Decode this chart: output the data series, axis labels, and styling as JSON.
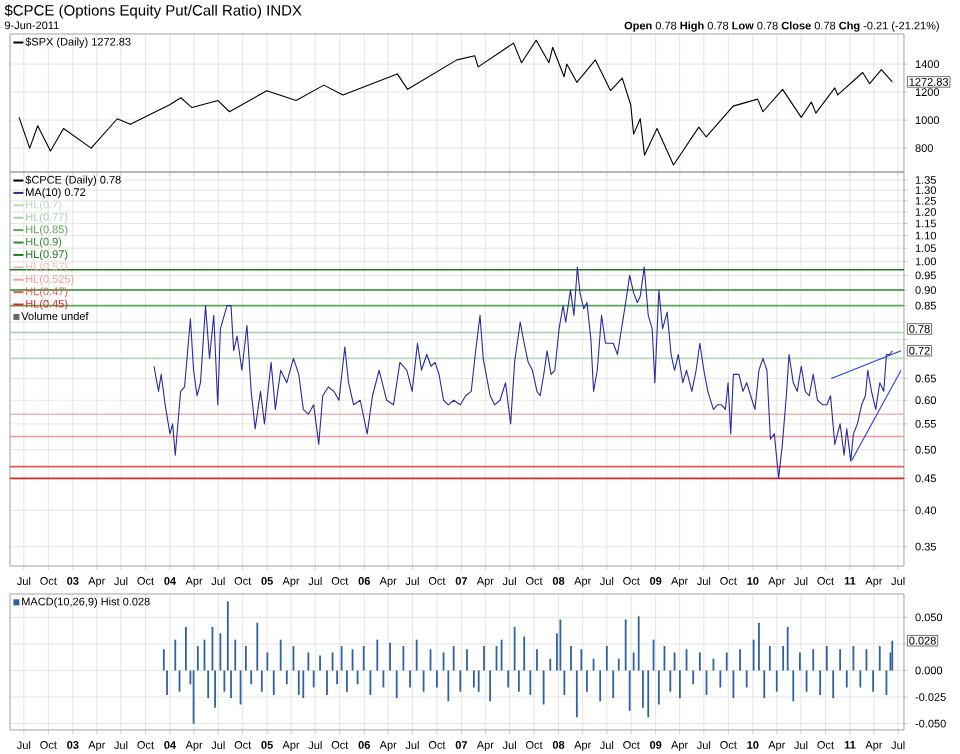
{
  "chart_data": [
    {
      "type": "line",
      "title": "$CPCE (Options Equity Put/Call Ratio) INDX",
      "subtitle": "9-Jun-2011",
      "annotations": [
        "**Open** 0.78 **High** 0.78 **Low** 0.78 **Close** 0.78 **Chg** -0.21 (-21.21%)",
        {
          "text": "1272.83",
          "x": "2011-06-09",
          "y": 1272.83
        }
      ],
      "xlim": [
        "2002-05-10",
        "2011-07-23"
      ],
      "ylim": [
        630,
        1615
      ],
      "xticks": [
        {
          "value": "2002-07-01",
          "label": null
        },
        {
          "value": "2002-10-01",
          "label": null
        },
        {
          "value": "2003-01-01",
          "label": null
        },
        {
          "value": "2003-04-01",
          "label": null
        },
        {
          "value": "2003-07-01",
          "label": null
        },
        {
          "value": "2003-10-01",
          "label": null
        },
        {
          "value": "2004-01-01",
          "label": null
        },
        {
          "value": "2004-04-01",
          "label": null
        },
        {
          "value": "2004-07-01",
          "label": null
        },
        {
          "value": "2004-10-01",
          "label": null
        },
        {
          "value": "2005-01-01",
          "label": null
        },
        {
          "value": "2005-04-01",
          "label": null
        },
        {
          "value": "2005-07-01",
          "label": null
        },
        {
          "value": "2005-10-01",
          "label": null
        },
        {
          "value": "2006-01-01",
          "label": null
        },
        {
          "value": "2006-04-01",
          "label": null
        },
        {
          "value": "2006-07-01",
          "label": null
        },
        {
          "value": "2006-10-01",
          "label": null
        },
        {
          "value": "2007-01-01",
          "label": null
        },
        {
          "value": "2007-04-01",
          "label": null
        },
        {
          "value": "2007-07-01",
          "label": null
        },
        {
          "value": "2007-10-01",
          "label": null
        },
        {
          "value": "2008-01-01",
          "label": null
        },
        {
          "value": "2008-04-01",
          "label": null
        },
        {
          "value": "2008-07-01",
          "label": null
        },
        {
          "value": "2008-10-01",
          "label": null
        },
        {
          "value": "2009-01-01",
          "label": null
        },
        {
          "value": "2009-04-01",
          "label": null
        },
        {
          "value": "2009-07-01",
          "label": null
        },
        {
          "value": "2009-10-01",
          "label": null
        },
        {
          "value": "2010-01-01",
          "label": null
        },
        {
          "value": "2010-04-01",
          "label": null
        },
        {
          "value": "2010-07-01",
          "label": null
        },
        {
          "value": "2010-10-01",
          "label": null
        },
        {
          "value": "2011-01-01",
          "label": null
        },
        {
          "value": "2011-04-01",
          "label": null
        },
        {
          "value": "2011-07-01",
          "label": null
        }
      ],
      "yticks": [
        800,
        1000,
        1200,
        1400
      ],
      "tick_labels": "y",
      "grid": true,
      "legend": "top left",
      "series": [
        {
          "name": "$SPX (Daily) 1272.83",
          "color": "#000000",
          "x": [
            "2002-06-13",
            "2002-07-23",
            "2002-08-22",
            "2002-10-09",
            "2002-11-27",
            "2003-03-11",
            "2003-06-17",
            "2003-08-05",
            "2003-12-31",
            "2004-02-11",
            "2004-03-24",
            "2004-06-30",
            "2004-08-12",
            "2004-12-31",
            "2005-04-20",
            "2005-08-02",
            "2005-10-13",
            "2006-05-05",
            "2006-06-13",
            "2006-12-15",
            "2007-02-20",
            "2007-03-05",
            "2007-07-16",
            "2007-08-15",
            "2007-10-09",
            "2007-11-26",
            "2007-12-10",
            "2008-01-22",
            "2008-02-01",
            "2008-03-10",
            "2008-05-19",
            "2008-07-15",
            "2008-08-28",
            "2008-09-29",
            "2008-10-10",
            "2008-11-04",
            "2008-11-20",
            "2009-01-06",
            "2009-03-09",
            "2009-06-12",
            "2009-07-10",
            "2009-10-19",
            "2010-01-19",
            "2010-02-08",
            "2010-04-23",
            "2010-07-02",
            "2010-08-09",
            "2010-08-26",
            "2010-11-05",
            "2010-11-16",
            "2011-02-18",
            "2011-03-16",
            "2011-04-29",
            "2011-06-09"
          ],
          "values": [
            1020,
            800,
            960,
            780,
            940,
            800,
            1010,
            970,
            1110,
            1160,
            1090,
            1140,
            1060,
            1210,
            1140,
            1250,
            1180,
            1330,
            1220,
            1430,
            1460,
            1380,
            1550,
            1410,
            1570,
            1410,
            1520,
            1310,
            1400,
            1270,
            1430,
            1210,
            1300,
            1110,
            900,
            1010,
            750,
            940,
            680,
            950,
            880,
            1100,
            1150,
            1060,
            1220,
            1020,
            1130,
            1050,
            1230,
            1180,
            1340,
            1260,
            1360,
            1272.83
          ]
        }
      ]
    },
    {
      "type": "line",
      "log": "y",
      "grid": true,
      "legend": "top left",
      "annotations": [
        "$CPCE (Daily) 0.78",
        "Volume undef",
        {
          "text": "0.78",
          "x": "2011-06-09",
          "y": 0.78
        },
        {
          "text": "0.72",
          "x": "2011-06-09",
          "y": 0.72
        }
      ],
      "xlim": [
        "2002-05-10",
        "2011-07-23"
      ],
      "ylim": [
        0.326,
        1.39
      ],
      "xticks": [
        {
          "value": "2002-07-01",
          "label": "Jul"
        },
        {
          "value": "2002-10-01",
          "label": "Oct"
        },
        {
          "value": "2003-01-01",
          "label": "03"
        },
        {
          "value": "2003-04-01",
          "label": "Apr"
        },
        {
          "value": "2003-07-01",
          "label": "Jul"
        },
        {
          "value": "2003-10-01",
          "label": "Oct"
        },
        {
          "value": "2004-01-01",
          "label": "04"
        },
        {
          "value": "2004-04-01",
          "label": "Apr"
        },
        {
          "value": "2004-07-01",
          "label": "Jul"
        },
        {
          "value": "2004-10-01",
          "label": "Oct"
        },
        {
          "value": "2005-01-01",
          "label": "05"
        },
        {
          "value": "2005-04-01",
          "label": "Apr"
        },
        {
          "value": "2005-07-01",
          "label": "Jul"
        },
        {
          "value": "2005-10-01",
          "label": "Oct"
        },
        {
          "value": "2006-01-01",
          "label": "06"
        },
        {
          "value": "2006-04-01",
          "label": "Apr"
        },
        {
          "value": "2006-07-01",
          "label": "Jul"
        },
        {
          "value": "2006-10-01",
          "label": "Oct"
        },
        {
          "value": "2007-01-01",
          "label": "07"
        },
        {
          "value": "2007-04-01",
          "label": "Apr"
        },
        {
          "value": "2007-07-01",
          "label": "Jul"
        },
        {
          "value": "2007-10-01",
          "label": "Oct"
        },
        {
          "value": "2008-01-01",
          "label": "08"
        },
        {
          "value": "2008-04-01",
          "label": "Apr"
        },
        {
          "value": "2008-07-01",
          "label": "Jul"
        },
        {
          "value": "2008-10-01",
          "label": "Oct"
        },
        {
          "value": "2009-01-01",
          "label": "09"
        },
        {
          "value": "2009-04-01",
          "label": "Apr"
        },
        {
          "value": "2009-07-01",
          "label": "Jul"
        },
        {
          "value": "2009-10-01",
          "label": "Oct"
        },
        {
          "value": "2010-01-01",
          "label": "10"
        },
        {
          "value": "2010-04-01",
          "label": "Apr"
        },
        {
          "value": "2010-07-01",
          "label": "Jul"
        },
        {
          "value": "2010-10-01",
          "label": "Oct"
        },
        {
          "value": "2011-01-01",
          "label": "11"
        },
        {
          "value": "2011-04-01",
          "label": "Apr"
        },
        {
          "value": "2011-07-01",
          "label": "Jul"
        }
      ],
      "yticks": [
        {
          "value": 0.35,
          "label": "0.35"
        },
        {
          "value": 0.4,
          "label": "0.40"
        },
        {
          "value": 0.45,
          "label": "0.45"
        },
        {
          "value": 0.5,
          "label": "0.50"
        },
        {
          "value": 0.55,
          "label": "0.55"
        },
        {
          "value": 0.6,
          "label": "0.60"
        },
        {
          "value": 0.65,
          "label": "0.65"
        },
        {
          "value": 0.7,
          "label": null
        },
        {
          "value": 0.75,
          "label": null
        },
        {
          "value": 0.8,
          "label": null
        },
        {
          "value": 0.85,
          "label": "0.85"
        },
        {
          "value": 0.9,
          "label": "0.90"
        },
        {
          "value": 0.95,
          "label": "0.95"
        },
        {
          "value": 1.0,
          "label": "1.00"
        },
        {
          "value": 1.05,
          "label": "1.05"
        },
        {
          "value": 1.1,
          "label": "1.10"
        },
        {
          "value": 1.15,
          "label": "1.15"
        },
        {
          "value": 1.2,
          "label": "1.20"
        },
        {
          "value": 1.25,
          "label": "1.25"
        },
        {
          "value": 1.3,
          "label": "1.30"
        },
        {
          "value": 1.35,
          "label": "1.35"
        }
      ],
      "ref_lines": [
        {
          "axis": "y",
          "value": 0.7,
          "label": "HL(0.7)",
          "color": "#b9dab9"
        },
        {
          "axis": "y",
          "value": 0.77,
          "label": "HL(0.77)",
          "color": "#a8d0a8"
        },
        {
          "axis": "y",
          "value": 0.85,
          "label": "HL(0.85)",
          "color": "#5aa65a"
        },
        {
          "axis": "y",
          "value": 0.9,
          "label": "HL(0.9)",
          "color": "#2e8b2e"
        },
        {
          "axis": "y",
          "value": 0.97,
          "label": "HL(0.97)",
          "color": "#1f7a1f"
        },
        {
          "axis": "y",
          "value": 0.57,
          "label": "HL(0.57)",
          "color": "#f4b4b4"
        },
        {
          "axis": "y",
          "value": 0.525,
          "label": "HL(0.525)",
          "color": "#f09a9a"
        },
        {
          "axis": "y",
          "value": 0.47,
          "label": "HL(0.47)",
          "color": "#e45a5a"
        },
        {
          "axis": "y",
          "value": 0.45,
          "label": "HL(0.45)",
          "color": "#e02828"
        }
      ],
      "series": [
        {
          "name": "MA(10) 0.72",
          "color": "#2b2b9c",
          "x": [
            "2003-11-02",
            "2003-11-19",
            "2003-11-29",
            "2003-12-14",
            "2004-01-01",
            "2004-01-11",
            "2004-01-21",
            "2004-02-10",
            "2004-02-25",
            "2004-03-18",
            "2004-03-30",
            "2004-04-12",
            "2004-04-25",
            "2004-05-14",
            "2004-05-29",
            "2004-06-14",
            "2004-06-29",
            "2004-07-09",
            "2004-08-03",
            "2004-08-18",
            "2004-08-28",
            "2004-09-10",
            "2004-09-28",
            "2004-10-17",
            "2004-11-02",
            "2004-11-17",
            "2004-12-07",
            "2004-12-22",
            "2005-01-16",
            "2005-02-01",
            "2005-02-21",
            "2005-03-16",
            "2005-04-10",
            "2005-04-30",
            "2005-05-17",
            "2005-06-05",
            "2005-06-25",
            "2005-07-14",
            "2005-07-29",
            "2005-08-19",
            "2005-09-09",
            "2005-09-28",
            "2005-10-20",
            "2005-11-03",
            "2005-11-22",
            "2005-12-17",
            "2006-01-12",
            "2006-02-01",
            "2006-02-26",
            "2006-03-26",
            "2006-04-21",
            "2006-05-15",
            "2006-06-10",
            "2006-06-30",
            "2006-07-20",
            "2006-08-04",
            "2006-08-24",
            "2006-09-09",
            "2006-09-24",
            "2006-10-09",
            "2006-10-26",
            "2006-11-13",
            "2006-12-03",
            "2006-12-28",
            "2007-01-17",
            "2007-02-07",
            "2007-02-22",
            "2007-03-12",
            "2007-03-24",
            "2007-04-19",
            "2007-05-06",
            "2007-05-26",
            "2007-06-16",
            "2007-06-26",
            "2007-07-05",
            "2007-07-20",
            "2007-08-10",
            "2007-08-25",
            "2007-09-09",
            "2007-09-25",
            "2007-10-12",
            "2007-10-24",
            "2007-11-09",
            "2007-11-19",
            "2007-12-04",
            "2007-12-18",
            "2008-01-03",
            "2008-01-18",
            "2008-01-28",
            "2008-02-15",
            "2008-02-28",
            "2008-03-12",
            "2008-03-22",
            "2008-04-05",
            "2008-04-17",
            "2008-05-02",
            "2008-05-12",
            "2008-05-26",
            "2008-06-11",
            "2008-06-26",
            "2008-07-25",
            "2008-08-10",
            "2008-09-10",
            "2008-09-25",
            "2008-10-10",
            "2008-10-24",
            "2008-11-04",
            "2008-11-19",
            "2008-12-04",
            "2008-12-19",
            "2008-12-29",
            "2009-01-13",
            "2009-01-27",
            "2009-02-13",
            "2009-02-28",
            "2009-03-13",
            "2009-03-27",
            "2009-04-13",
            "2009-04-27",
            "2009-05-17",
            "2009-06-02",
            "2009-06-16",
            "2009-07-01",
            "2009-07-16",
            "2009-08-06",
            "2009-08-21",
            "2009-09-05",
            "2009-09-20",
            "2009-09-30",
            "2009-10-10",
            "2009-10-20",
            "2009-11-10",
            "2009-11-25",
            "2009-12-09",
            "2009-12-24",
            "2010-01-09",
            "2010-01-24",
            "2010-02-08",
            "2010-02-23",
            "2010-03-08",
            "2010-03-23",
            "2010-04-08",
            "2010-04-22",
            "2010-05-07",
            "2010-05-17",
            "2010-06-02",
            "2010-06-17",
            "2010-07-02",
            "2010-07-17",
            "2010-08-01",
            "2010-08-16",
            "2010-09-01",
            "2010-09-21",
            "2010-10-06",
            "2010-10-20",
            "2010-11-05",
            "2010-11-25",
            "2010-12-10",
            "2010-12-20",
            "2011-01-04",
            "2011-01-14",
            "2011-01-29",
            "2011-02-14",
            "2011-02-28",
            "2011-03-09",
            "2011-03-23",
            "2011-04-08",
            "2011-04-23",
            "2011-05-08",
            "2011-05-18",
            "2011-05-31",
            "2011-06-09"
          ],
          "values": [
            0.68,
            0.62,
            0.66,
            0.59,
            0.53,
            0.55,
            0.49,
            0.62,
            0.63,
            0.81,
            0.67,
            0.61,
            0.64,
            0.85,
            0.7,
            0.82,
            0.59,
            0.78,
            0.85,
            0.85,
            0.72,
            0.76,
            0.67,
            0.79,
            0.62,
            0.54,
            0.62,
            0.55,
            0.69,
            0.58,
            0.67,
            0.64,
            0.7,
            0.66,
            0.58,
            0.57,
            0.59,
            0.51,
            0.61,
            0.63,
            0.62,
            0.6,
            0.73,
            0.64,
            0.59,
            0.6,
            0.53,
            0.61,
            0.67,
            0.6,
            0.59,
            0.69,
            0.67,
            0.62,
            0.74,
            0.67,
            0.71,
            0.68,
            0.69,
            0.66,
            0.6,
            0.59,
            0.6,
            0.59,
            0.61,
            0.62,
            0.71,
            0.82,
            0.7,
            0.61,
            0.59,
            0.6,
            0.64,
            0.59,
            0.55,
            0.69,
            0.8,
            0.74,
            0.69,
            0.67,
            0.62,
            0.61,
            0.67,
            0.72,
            0.66,
            0.67,
            0.78,
            0.85,
            0.8,
            0.9,
            0.82,
            0.98,
            0.89,
            0.84,
            0.86,
            0.75,
            0.62,
            0.67,
            0.82,
            0.74,
            0.74,
            0.71,
            0.86,
            0.95,
            0.89,
            0.86,
            0.88,
            0.98,
            0.82,
            0.78,
            0.64,
            0.9,
            0.78,
            0.83,
            0.71,
            0.67,
            0.71,
            0.64,
            0.67,
            0.62,
            0.67,
            0.74,
            0.67,
            0.62,
            0.58,
            0.59,
            0.59,
            0.58,
            0.64,
            0.53,
            0.66,
            0.66,
            0.62,
            0.64,
            0.61,
            0.58,
            0.67,
            0.7,
            0.67,
            0.52,
            0.53,
            0.45,
            0.51,
            0.61,
            0.71,
            0.64,
            0.62,
            0.68,
            0.62,
            0.61,
            0.66,
            0.6,
            0.59,
            0.59,
            0.61,
            0.51,
            0.55,
            0.49,
            0.54,
            0.48,
            0.53,
            0.55,
            0.59,
            0.61,
            0.67,
            0.62,
            0.58,
            0.64,
            0.62,
            0.71,
            0.71,
            0.72
          ]
        },
        {
          "type": "line",
          "color": "#2040e0",
          "x": [
            "2010-10-23",
            "2011-07-12"
          ],
          "values": [
            0.65,
            0.72
          ]
        },
        {
          "type": "line",
          "color": "#2040e0",
          "x": [
            "2011-01-07",
            "2011-07-12"
          ],
          "values": [
            0.48,
            0.67
          ]
        }
      ]
    },
    {
      "type": "bar",
      "grid": true,
      "legend": "top left",
      "annotations": [
        {
          "text": "0.028",
          "x": "2011-06-09",
          "y": 0.028
        }
      ],
      "xlim": [
        "2002-05-10",
        "2011-07-23"
      ],
      "ylim": [
        -0.056,
        0.072
      ],
      "xticks": [
        {
          "value": "2002-07-01",
          "label": "Jul"
        },
        {
          "value": "2002-10-01",
          "label": "Oct"
        },
        {
          "value": "2003-01-01",
          "label": "03"
        },
        {
          "value": "2003-04-01",
          "label": "Apr"
        },
        {
          "value": "2003-07-01",
          "label": "Jul"
        },
        {
          "value": "2003-10-01",
          "label": "Oct"
        },
        {
          "value": "2004-01-01",
          "label": "04"
        },
        {
          "value": "2004-04-01",
          "label": "Apr"
        },
        {
          "value": "2004-07-01",
          "label": "Jul"
        },
        {
          "value": "2004-10-01",
          "label": "Oct"
        },
        {
          "value": "2005-01-01",
          "label": "05"
        },
        {
          "value": "2005-04-01",
          "label": "Apr"
        },
        {
          "value": "2005-07-01",
          "label": "Jul"
        },
        {
          "value": "2005-10-01",
          "label": "Oct"
        },
        {
          "value": "2006-01-01",
          "label": "06"
        },
        {
          "value": "2006-04-01",
          "label": "Apr"
        },
        {
          "value": "2006-07-01",
          "label": "Jul"
        },
        {
          "value": "2006-10-01",
          "label": "Oct"
        },
        {
          "value": "2007-01-01",
          "label": "07"
        },
        {
          "value": "2007-04-01",
          "label": "Apr"
        },
        {
          "value": "2007-07-01",
          "label": "Jul"
        },
        {
          "value": "2007-10-01",
          "label": "Oct"
        },
        {
          "value": "2008-01-01",
          "label": "08"
        },
        {
          "value": "2008-04-01",
          "label": "Apr"
        },
        {
          "value": "2008-07-01",
          "label": "Jul"
        },
        {
          "value": "2008-10-01",
          "label": "Oct"
        },
        {
          "value": "2009-01-01",
          "label": "09"
        },
        {
          "value": "2009-04-01",
          "label": "Apr"
        },
        {
          "value": "2009-07-01",
          "label": "Jul"
        },
        {
          "value": "2009-10-01",
          "label": "Oct"
        },
        {
          "value": "2010-01-01",
          "label": "10"
        },
        {
          "value": "2010-04-01",
          "label": "Apr"
        },
        {
          "value": "2010-07-01",
          "label": "Jul"
        },
        {
          "value": "2010-10-01",
          "label": "Oct"
        },
        {
          "value": "2011-01-01",
          "label": "11"
        },
        {
          "value": "2011-04-01",
          "label": "Apr"
        },
        {
          "value": "2011-07-01",
          "label": "Jul"
        }
      ],
      "yticks": [
        {
          "value": -0.05,
          "label": "-0.050"
        },
        {
          "value": -0.025,
          "label": "-0.025"
        },
        {
          "value": 0,
          "label": "0.000"
        },
        {
          "value": 0.025,
          "label": null
        },
        {
          "value": 0.05,
          "label": "0.050"
        }
      ],
      "series": [
        {
          "name": "MACD(10,26,9) Hist 0.028",
          "color": "#2f62a0",
          "x": [
            "2003-12-09",
            "2003-12-21",
            "2004-01-21",
            "2004-02-06",
            "2004-03-01",
            "2004-03-18",
            "2004-03-30",
            "2004-04-15",
            "2004-05-10",
            "2004-05-24",
            "2004-06-09",
            "2004-06-19",
            "2004-07-09",
            "2004-07-24",
            "2004-08-06",
            "2004-08-18",
            "2004-09-03",
            "2004-09-23",
            "2004-10-13",
            "2004-11-02",
            "2004-11-25",
            "2004-12-12",
            "2005-01-02",
            "2005-01-26",
            "2005-02-21",
            "2005-03-16",
            "2005-04-10",
            "2005-04-30",
            "2005-05-17",
            "2005-06-05",
            "2005-06-25",
            "2005-07-19",
            "2005-08-14",
            "2005-09-04",
            "2005-09-21",
            "2005-10-08",
            "2005-10-28",
            "2005-11-18",
            "2005-12-07",
            "2005-12-30",
            "2006-01-24",
            "2006-02-19",
            "2006-03-14",
            "2006-04-08",
            "2006-05-03",
            "2006-05-28",
            "2006-06-22",
            "2006-07-17",
            "2006-08-12",
            "2006-09-07",
            "2006-10-01",
            "2006-10-26",
            "2006-11-13",
            "2006-12-03",
            "2006-12-28",
            "2007-01-22",
            "2007-02-17",
            "2007-03-07",
            "2007-03-27",
            "2007-04-19",
            "2007-05-13",
            "2007-06-01",
            "2007-06-26",
            "2007-07-20",
            "2007-08-05",
            "2007-08-25",
            "2007-09-17",
            "2007-10-12",
            "2007-11-06",
            "2007-12-01",
            "2007-12-26",
            "2008-01-08",
            "2008-01-23",
            "2008-02-17",
            "2008-03-10",
            "2008-03-27",
            "2008-04-17",
            "2008-05-12",
            "2008-06-06",
            "2008-07-01",
            "2008-07-25",
            "2008-08-15",
            "2008-09-10",
            "2008-09-25",
            "2008-10-10",
            "2008-10-29",
            "2008-11-14",
            "2008-12-04",
            "2008-12-24",
            "2009-01-13",
            "2009-02-03",
            "2009-02-25",
            "2009-03-13",
            "2009-04-02",
            "2009-04-27",
            "2009-05-22",
            "2009-06-16",
            "2009-07-11",
            "2009-08-06",
            "2009-09-01",
            "2009-09-25",
            "2009-10-20",
            "2009-11-14",
            "2009-12-09",
            "2010-01-04",
            "2010-01-24",
            "2010-02-13",
            "2010-03-06",
            "2010-04-01",
            "2010-04-25",
            "2010-05-12",
            "2010-06-02",
            "2010-06-27",
            "2010-07-22",
            "2010-08-16",
            "2010-09-11",
            "2010-10-06",
            "2010-10-30",
            "2010-11-25",
            "2010-12-20",
            "2011-01-14",
            "2011-02-09",
            "2011-03-04",
            "2011-03-29",
            "2011-04-23",
            "2011-05-18",
            "2011-06-02",
            "2011-06-09"
          ],
          "values": [
            0.02,
            -0.023,
            0.029,
            -0.02,
            0.041,
            -0.013,
            -0.05,
            0.023,
            0.029,
            -0.026,
            0.041,
            -0.035,
            0.035,
            -0.02,
            0.065,
            -0.026,
            0.029,
            -0.032,
            0.023,
            -0.013,
            0.045,
            -0.02,
            0.017,
            -0.023,
            0.029,
            -0.013,
            0.023,
            -0.023,
            -0.026,
            0.017,
            -0.016,
            0.014,
            -0.023,
            0.017,
            -0.013,
            0.023,
            -0.02,
            0.02,
            -0.013,
            0.023,
            -0.023,
            0.029,
            -0.016,
            0.026,
            -0.026,
            0.023,
            -0.016,
            0.029,
            -0.02,
            0.02,
            -0.016,
            0.017,
            -0.029,
            0.023,
            -0.02,
            0.02,
            -0.016,
            -0.02,
            0.023,
            -0.029,
            0.023,
            0.029,
            -0.016,
            0.041,
            -0.02,
            0.032,
            -0.023,
            0.02,
            -0.032,
            0.011,
            0.035,
            0.048,
            -0.023,
            0.023,
            -0.044,
            0.02,
            -0.02,
            0.011,
            -0.029,
            0.023,
            -0.026,
            0.011,
            0.048,
            -0.038,
            0.017,
            0.051,
            -0.035,
            -0.044,
            0.029,
            -0.032,
            0.023,
            -0.02,
            0.017,
            -0.026,
            0.02,
            -0.013,
            0.017,
            -0.023,
            0.011,
            -0.016,
            0.017,
            -0.026,
            0.02,
            -0.016,
            0.029,
            0.045,
            -0.026,
            0.023,
            -0.02,
            0.023,
            0.041,
            -0.029,
            0.017,
            -0.02,
            0.02,
            -0.023,
            0.023,
            -0.026,
            0.02,
            -0.016,
            0.023,
            -0.016,
            0.02,
            -0.02,
            0.023,
            -0.023,
            0.017,
            0.028
          ]
        }
      ]
    }
  ]
}
